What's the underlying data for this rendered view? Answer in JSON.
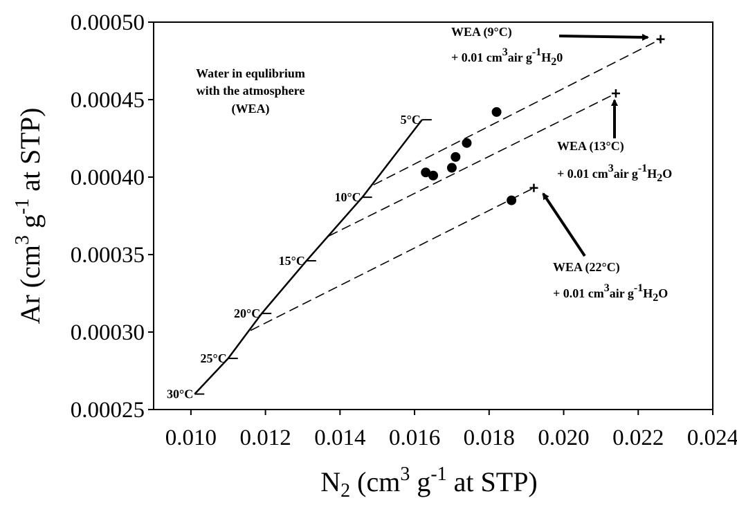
{
  "chart_data": {
    "type": "scatter",
    "xlabel": {
      "main": "N",
      "sub": "2",
      "rest1": " (cm",
      "sup1": "3",
      "rest2": " g",
      "sup2": "-1",
      "rest3": " at STP)"
    },
    "ylabel": {
      "main": "Ar (cm",
      "sup1": "3",
      "rest1": " g",
      "sup2": "-1",
      "rest2": " at STP)"
    },
    "xlim": [
      0.009,
      0.024
    ],
    "ylim": [
      0.00025,
      0.0005
    ],
    "x_ticks": [
      "0.010",
      "0.012",
      "0.014",
      "0.016",
      "0.018",
      "0.020",
      "0.022",
      "0.024"
    ],
    "y_ticks": [
      "0.00025",
      "0.00030",
      "0.00035",
      "0.00040",
      "0.00045",
      "0.00050"
    ],
    "grid": false,
    "wea_line": [
      {
        "label": "30°C",
        "x": 0.0101,
        "y": 0.00026
      },
      {
        "label": "25°C",
        "x": 0.011,
        "y": 0.000283
      },
      {
        "label": "20°C",
        "x": 0.0119,
        "y": 0.000312
      },
      {
        "label": "15°C",
        "x": 0.0131,
        "y": 0.000346
      },
      {
        "label": "10°C",
        "x": 0.0146,
        "y": 0.000387
      },
      {
        "label": "5°C",
        "x": 0.0162,
        "y": 0.000437
      }
    ],
    "mixing_lines": [
      {
        "x": [
          0.0149,
          0.0226
        ],
        "y": [
          0.000395,
          0.000489
        ]
      },
      {
        "x": [
          0.0137,
          0.0214
        ],
        "y": [
          0.000362,
          0.000454
        ]
      },
      {
        "x": [
          0.0116,
          0.0192
        ],
        "y": [
          0.000301,
          0.000393
        ]
      }
    ],
    "end_points": [
      {
        "x": 0.0226,
        "y": 0.000489
      },
      {
        "x": 0.0214,
        "y": 0.000454
      },
      {
        "x": 0.0192,
        "y": 0.000393
      }
    ],
    "samples": [
      {
        "x": 0.0163,
        "y": 0.000403
      },
      {
        "x": 0.0165,
        "y": 0.000401
      },
      {
        "x": 0.017,
        "y": 0.000406
      },
      {
        "x": 0.0171,
        "y": 0.000413
      },
      {
        "x": 0.0174,
        "y": 0.000422
      },
      {
        "x": 0.0182,
        "y": 0.000442
      },
      {
        "x": 0.0186,
        "y": 0.000385
      }
    ],
    "annotations": {
      "wea_title": [
        "Water in equlibrium",
        "with the atmosphere",
        "(WEA)"
      ],
      "wea9": {
        "title": "WEA (9°C)",
        "prefix": "+ 0.01 cm",
        "sup1": "3",
        "mid": "air g",
        "sup2": "-1",
        "chem": "H",
        "sub": "2",
        "tail": "0"
      },
      "wea13": {
        "title": "WEA (13°C)",
        "prefix": "+ 0.01 cm",
        "sup1": "3",
        "mid": "air g",
        "sup2": "-1",
        "chem": "H",
        "sub": "2",
        "tail": "O"
      },
      "wea22": {
        "title": "WEA (22°C)",
        "prefix": "+ 0.01 cm",
        "sup1": "3",
        "mid": "air g",
        "sup2": "-1",
        "chem": "H",
        "sub": "2",
        "tail": "O"
      }
    }
  }
}
